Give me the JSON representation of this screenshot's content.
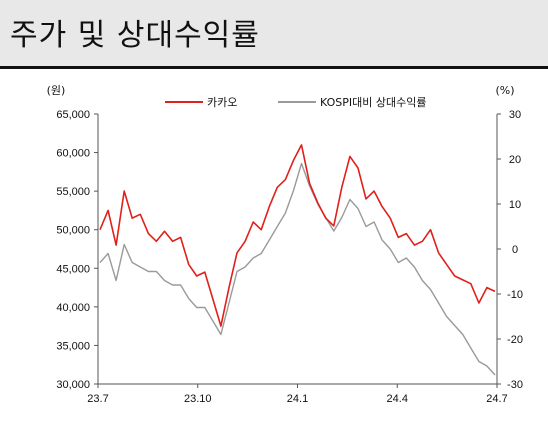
{
  "header": {
    "title": "주가 및 상대수익률"
  },
  "chart_data": {
    "type": "line",
    "title": "주가 및 상대수익률",
    "x_ticks": [
      "23.7",
      "23.10",
      "24.1",
      "24.4",
      "24.7"
    ],
    "left_axis": {
      "unit_label": "(원)",
      "ylim": [
        30000,
        65000
      ],
      "ticks": [
        "65,000",
        "60,000",
        "55,000",
        "50,000",
        "45,000",
        "40,000",
        "35,000",
        "30,000"
      ]
    },
    "right_axis": {
      "unit_label": "(%)",
      "ylim": [
        -30,
        30
      ],
      "ticks": [
        "30",
        "20",
        "10",
        "0",
        "-10",
        "-20",
        "-30"
      ]
    },
    "legend_placement": "top",
    "series": [
      {
        "name": "카카오",
        "axis": "left",
        "color": "#e0201b",
        "x": [
          "23.7",
          "23.7",
          "23.7",
          "23.8",
          "23.8",
          "23.8",
          "23.8",
          "23.8",
          "23.9",
          "23.9",
          "23.9",
          "23.9",
          "23.10",
          "23.10",
          "23.10",
          "23.10",
          "23.11",
          "23.11",
          "23.11",
          "23.11",
          "23.12",
          "23.12",
          "23.12",
          "23.12",
          "24.1",
          "24.1",
          "24.1",
          "24.1",
          "24.2",
          "24.2",
          "24.2",
          "24.2",
          "24.3",
          "24.3",
          "24.3",
          "24.3",
          "24.4",
          "24.4",
          "24.4",
          "24.4",
          "24.5",
          "24.5",
          "24.5",
          "24.5",
          "24.6",
          "24.6",
          "24.6",
          "24.6",
          "24.7",
          "24.7"
        ],
        "values": [
          50000,
          52500,
          48000,
          55000,
          51500,
          52000,
          49500,
          48500,
          49800,
          48500,
          49000,
          45500,
          44000,
          44500,
          41000,
          37500,
          42500,
          47000,
          48500,
          51000,
          50000,
          53000,
          55500,
          56500,
          59000,
          61000,
          56000,
          53500,
          51500,
          50500,
          55500,
          59500,
          58000,
          54000,
          55000,
          53000,
          51500,
          49000,
          49500,
          48000,
          48500,
          50000,
          47000,
          45500,
          44000,
          43500,
          43000,
          40500,
          42500,
          42000
        ]
      },
      {
        "name": "KOSPI대비 상대수익률",
        "axis": "right",
        "color": "#9a9a9a",
        "x": [
          "23.7",
          "23.7",
          "23.7",
          "23.8",
          "23.8",
          "23.8",
          "23.8",
          "23.8",
          "23.9",
          "23.9",
          "23.9",
          "23.9",
          "23.10",
          "23.10",
          "23.10",
          "23.10",
          "23.11",
          "23.11",
          "23.11",
          "23.11",
          "23.12",
          "23.12",
          "23.12",
          "23.12",
          "24.1",
          "24.1",
          "24.1",
          "24.1",
          "24.2",
          "24.2",
          "24.2",
          "24.2",
          "24.3",
          "24.3",
          "24.3",
          "24.3",
          "24.4",
          "24.4",
          "24.4",
          "24.4",
          "24.5",
          "24.5",
          "24.5",
          "24.5",
          "24.6",
          "24.6",
          "24.6",
          "24.6",
          "24.7",
          "24.7"
        ],
        "values": [
          -3,
          -1,
          -7,
          1,
          -3,
          -4,
          -5,
          -5,
          -7,
          -8,
          -8,
          -11,
          -13,
          -13,
          -16,
          -19,
          -12,
          -5,
          -4,
          -2,
          -1,
          2,
          5,
          8,
          13,
          19,
          14,
          10,
          7,
          4,
          7,
          11,
          9,
          5,
          6,
          2,
          0,
          -3,
          -2,
          -4,
          -7,
          -9,
          -12,
          -15,
          -17,
          -19,
          -22,
          -25,
          -26,
          -28
        ]
      }
    ],
    "grid": false
  }
}
